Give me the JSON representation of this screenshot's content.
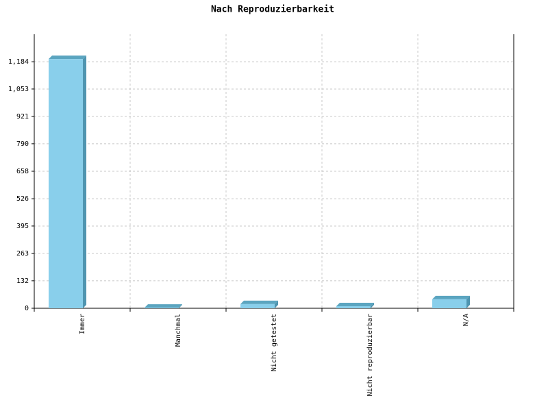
{
  "chart_data": {
    "type": "bar",
    "title": "Nach Reproduzierbarkeit",
    "categories": [
      "Immer",
      "Manchmal",
      "Nicht getestet",
      "Nicht reproduzierbar",
      "N/A"
    ],
    "values": [
      1197,
      3,
      20,
      10,
      43
    ],
    "color": "#89cfeb",
    "ylim": [
      0,
      1316
    ],
    "yticks": [
      0,
      132,
      263,
      395,
      526,
      658,
      790,
      921,
      {
        "value": 1053,
        "label": "1,053"
      },
      {
        "value": 1184,
        "label": "1,184"
      }
    ],
    "grid": true
  }
}
